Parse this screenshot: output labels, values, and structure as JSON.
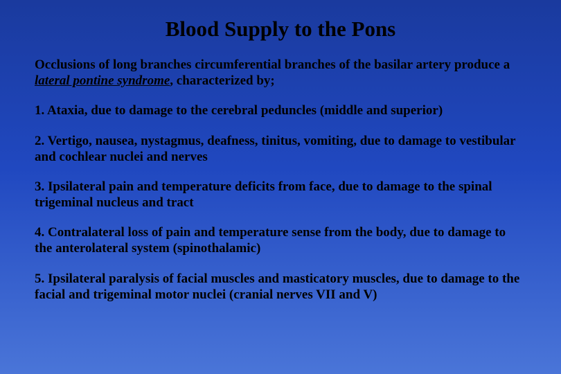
{
  "slide": {
    "title": "Blood Supply to the Pons",
    "intro_part1": "Occlusions of long branches circumferential branches of the basilar artery produce a ",
    "intro_italic": "lateral pontine syndrome",
    "intro_part2": ", characterized by;",
    "items": [
      "1. Ataxia, due to damage to the cerebral peduncles (middle and superior)",
      "2. Vertigo, nausea, nystagmus, deafness, tinitus, vomiting, due to damage to vestibular and cochlear nuclei and nerves",
      "3. Ipsilateral pain and temperature deficits from face, due to damage to the spinal trigeminal nucleus and tract",
      "4. Contralateral loss of pain and temperature sense from the body, due to damage to the anterolateral system (spinothalamic)",
      "5. Ipsilateral paralysis of facial muscles and masticatory muscles, due to damage to the facial and trigeminal motor nuclei (cranial nerves VII and V)"
    ]
  },
  "style": {
    "background_gradient_top": "#1a3a9e",
    "background_gradient_mid": "#2048c0",
    "background_gradient_bottom": "#4a75d8",
    "text_color": "#000000",
    "font_family": "Times New Roman",
    "title_fontsize": 31,
    "body_fontsize": 19
  }
}
